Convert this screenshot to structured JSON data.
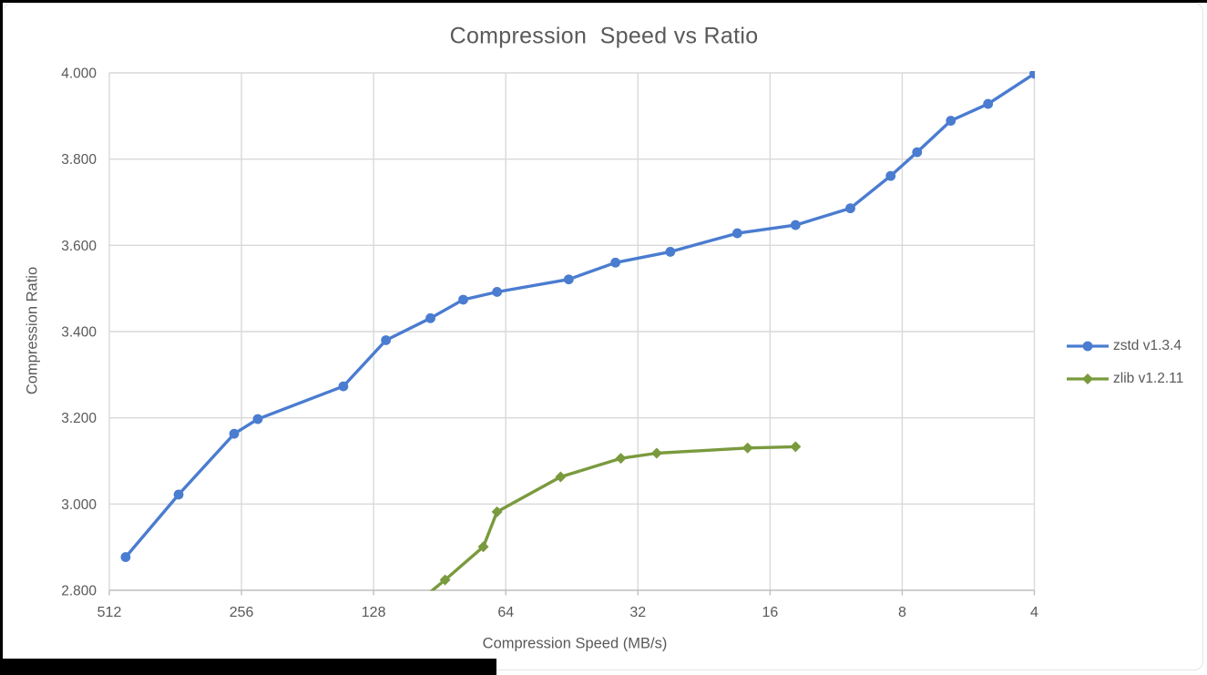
{
  "chart": {
    "title": "Compression  Speed vs Ratio",
    "x_axis": {
      "title": "Compression Speed (MB/s)",
      "tick_labels": [
        "512",
        "256",
        "128",
        "64",
        "32",
        "16",
        "8",
        "4"
      ]
    },
    "y_axis": {
      "title": "Compression Ratio",
      "tick_labels": [
        "4.000",
        "3.800",
        "3.600",
        "3.400",
        "3.200",
        "3.000",
        "2.800"
      ]
    },
    "legend": {
      "items": [
        {
          "label": "zstd v1.3.4"
        },
        {
          "label": "zlib v1.2.11"
        }
      ]
    },
    "colors": {
      "grid": "#d9d9d9",
      "axis_line": "#bfbfbf",
      "text": "#595959",
      "background": "#ffffff",
      "screenshot_border": "#000000"
    }
  },
  "chart_data": {
    "type": "line",
    "title": "Compression Speed vs Ratio",
    "xlabel": "Compression Speed (MB/s)",
    "ylabel": "Compression Ratio",
    "x_scale": "log2-reversed",
    "xlim": [
      512,
      4
    ],
    "ylim": [
      2.8,
      4.0
    ],
    "x_ticks": [
      512,
      256,
      128,
      64,
      32,
      16,
      8,
      4
    ],
    "y_ticks": [
      4.0,
      3.8,
      3.6,
      3.4,
      3.2,
      3.0,
      2.8
    ],
    "grid": true,
    "legend_position": "right",
    "series": [
      {
        "name": "zstd v1.3.4",
        "color": "#4A7CD0",
        "marker": "circle",
        "points": [
          [
            470,
            2.877
          ],
          [
            356,
            3.022
          ],
          [
            266,
            3.163
          ],
          [
            235,
            3.197
          ],
          [
            150,
            3.273
          ],
          [
            120,
            3.38
          ],
          [
            95,
            3.431
          ],
          [
            80,
            3.474
          ],
          [
            67,
            3.492
          ],
          [
            46,
            3.521
          ],
          [
            36,
            3.56
          ],
          [
            27,
            3.585
          ],
          [
            19,
            3.628
          ],
          [
            14,
            3.647
          ],
          [
            10.5,
            3.686
          ],
          [
            8.5,
            3.761
          ],
          [
            7.4,
            3.816
          ],
          [
            6.2,
            3.889
          ],
          [
            5.1,
            3.928
          ],
          [
            4.0,
            3.998
          ]
        ]
      },
      {
        "name": "zlib v1.2.11",
        "color": "#7A9A3E",
        "marker": "diamond",
        "points": [
          [
            110,
            2.743
          ],
          [
            88,
            2.824
          ],
          [
            72,
            2.901
          ],
          [
            67,
            2.982
          ],
          [
            48,
            3.063
          ],
          [
            35,
            3.106
          ],
          [
            29,
            3.118
          ],
          [
            18,
            3.13
          ],
          [
            14,
            3.133
          ]
        ]
      }
    ]
  }
}
